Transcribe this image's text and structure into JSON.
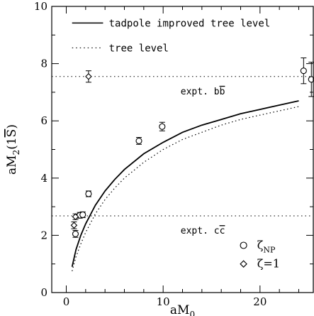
{
  "chart_data": {
    "type": "scatter",
    "title": "",
    "xlabel": "aM",
    "xlabel_sub": "0",
    "ylabel_parts": [
      "aM",
      "2",
      "(1",
      "S",
      ")"
    ],
    "xlim": [
      -1.5,
      25.5
    ],
    "ylim": [
      0,
      10
    ],
    "x_ticks": [
      0,
      10,
      20
    ],
    "y_ticks": [
      0,
      2,
      4,
      6,
      8,
      10
    ],
    "legend_position": "top-left",
    "series": [
      {
        "name": "tadpole improved tree level",
        "kind": "line-solid",
        "x": [
          0.6,
          1,
          1.5,
          2,
          3,
          4,
          5,
          6,
          8,
          10,
          12,
          14,
          16,
          18,
          20,
          22,
          24
        ],
        "y": [
          0.9,
          1.5,
          2.0,
          2.4,
          3.05,
          3.55,
          3.95,
          4.3,
          4.85,
          5.25,
          5.6,
          5.85,
          6.05,
          6.25,
          6.4,
          6.55,
          6.7
        ]
      },
      {
        "name": "tree level",
        "kind": "line-dotted",
        "x": [
          0.6,
          1,
          1.5,
          2,
          3,
          4,
          5,
          6,
          8,
          10,
          12,
          14,
          16,
          18,
          20,
          22,
          24
        ],
        "y": [
          0.75,
          1.25,
          1.7,
          2.1,
          2.75,
          3.25,
          3.65,
          4.0,
          4.55,
          5.0,
          5.35,
          5.6,
          5.85,
          6.05,
          6.2,
          6.35,
          6.5
        ]
      },
      {
        "name": "ζ_NP",
        "symbol": "circle",
        "points": [
          {
            "x": 0.95,
            "y": 2.05,
            "err": 0.12
          },
          {
            "x": 1.4,
            "y": 2.7,
            "err": 0.1
          },
          {
            "x": 1.7,
            "y": 2.72,
            "err": 0.1
          },
          {
            "x": 2.3,
            "y": 3.45,
            "err": 0.1
          },
          {
            "x": 7.5,
            "y": 5.3,
            "err": 0.12
          },
          {
            "x": 9.9,
            "y": 5.8,
            "err": 0.15
          },
          {
            "x": 24.5,
            "y": 7.75,
            "err": 0.45
          },
          {
            "x": 25.3,
            "y": 7.45,
            "err": 0.6
          }
        ]
      },
      {
        "name": "ζ=1",
        "symbol": "diamond",
        "points": [
          {
            "x": 0.8,
            "y": 2.35,
            "err": 0.12
          },
          {
            "x": 0.95,
            "y": 2.65,
            "err": 0.1
          },
          {
            "x": 2.3,
            "y": 7.55,
            "err": 0.2
          }
        ]
      }
    ],
    "reference_lines": [
      {
        "y": 7.55,
        "label_parts": [
          "expt. b",
          "b"
        ],
        "label_x": 11.8,
        "label_y": 7.05
      },
      {
        "y": 2.68,
        "label_parts": [
          "expt. c",
          "c"
        ],
        "label_x": 11.8,
        "label_y": 2.18
      }
    ],
    "legend": {
      "lines": [
        "tadpole improved tree level",
        "tree level"
      ],
      "symbols": [
        {
          "text": "ζ",
          "sub": "NP",
          "symbol": "circle"
        },
        {
          "text": "ζ=1",
          "sub": "",
          "symbol": "diamond"
        }
      ]
    }
  }
}
